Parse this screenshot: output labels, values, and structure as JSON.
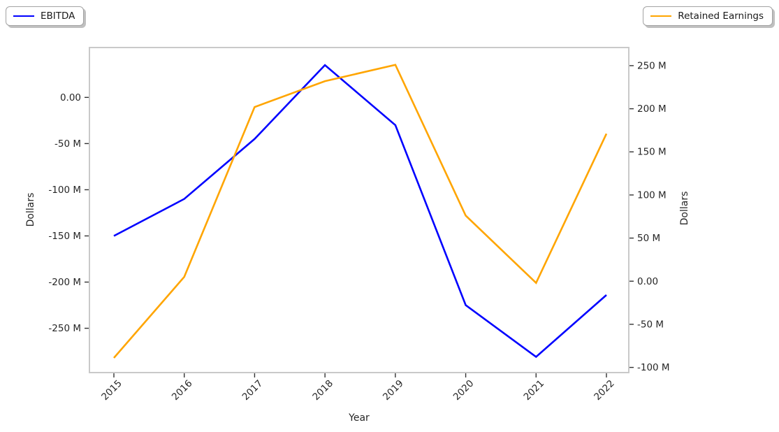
{
  "legend": {
    "left_label": "EBITDA",
    "right_label": "Retained Earnings"
  },
  "colors": {
    "ebitda": "#0000ff",
    "retained_earnings": "#ffa500",
    "spine": "#c9c9c9",
    "tick": "#333333",
    "text": "#262626"
  },
  "chart_data": {
    "type": "line",
    "title": "",
    "xlabel": "Year",
    "ylabel_left": "Dollars",
    "ylabel_right": "Dollars",
    "categories": [
      "2015",
      "2016",
      "2017",
      "2018",
      "2019",
      "2020",
      "2021",
      "2022"
    ],
    "series": [
      {
        "name": "EBITDA",
        "slug": "ebitda",
        "axis": "left",
        "color": "#0000ff",
        "unit": "millions of dollars",
        "values": [
          -150,
          -110,
          -45,
          35,
          -30,
          -225,
          -281,
          -214
        ]
      },
      {
        "name": "Retained Earnings",
        "slug": "retained-earnings",
        "axis": "right",
        "color": "#ffa500",
        "unit": "millions of dollars",
        "values": [
          -89,
          5,
          202,
          232,
          251,
          76,
          -2,
          171
        ]
      }
    ],
    "left_axis": {
      "ylim": [
        -298,
        54
      ],
      "ticks": [
        {
          "v": 0,
          "label": "0.00"
        },
        {
          "v": -50,
          "label": "-50 M"
        },
        {
          "v": -100,
          "label": "-100 M"
        },
        {
          "v": -150,
          "label": "-150 M"
        },
        {
          "v": -200,
          "label": "-200 M"
        },
        {
          "v": -250,
          "label": "-250 M"
        }
      ]
    },
    "right_axis": {
      "ylim": [
        -106,
        271
      ],
      "ticks": [
        {
          "v": 250,
          "label": "250 M"
        },
        {
          "v": 200,
          "label": "200 M"
        },
        {
          "v": 150,
          "label": "150 M"
        },
        {
          "v": 100,
          "label": "100 M"
        },
        {
          "v": 50,
          "label": "50 M"
        },
        {
          "v": 0,
          "label": "0.00"
        },
        {
          "v": -50,
          "label": "-50 M"
        },
        {
          "v": -100,
          "label": "-100 M"
        }
      ]
    },
    "legend_position": {
      "ebitda": "upper left",
      "retained_earnings": "upper right"
    },
    "grid": false
  }
}
